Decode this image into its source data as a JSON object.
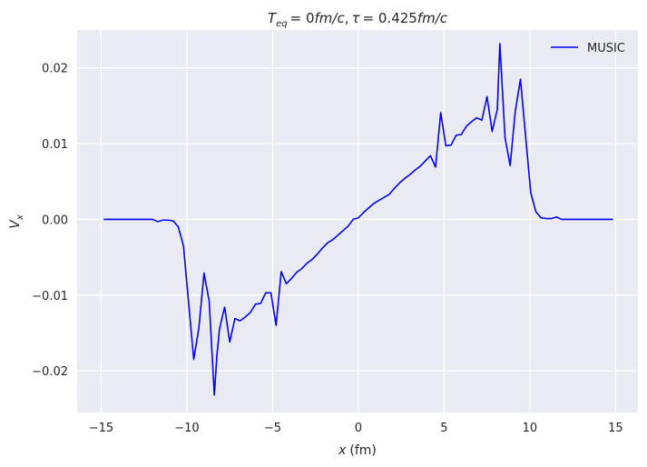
{
  "chart_data": {
    "type": "line",
    "title": "T_eq = 0fm/c, τ = 0.425fm/c",
    "title_parts": {
      "t_symbol": "T",
      "t_subscript": "eq",
      "t_value": "= 0",
      "t_unit": "fm/c",
      "separator": ",",
      "tau_symbol": "τ",
      "tau_value": "= 0.425",
      "tau_unit": "fm/c"
    },
    "xlabel": "x (fm)",
    "xlabel_parts": {
      "var": "x",
      "unit": "(fm)"
    },
    "ylabel": "V_x",
    "ylabel_parts": {
      "var": "V",
      "subscript": "x"
    },
    "xlim": [
      -16.4,
      16.3
    ],
    "ylim": [
      -0.0255,
      0.025
    ],
    "xticks": [
      -15,
      -10,
      -5,
      0,
      5,
      10,
      15
    ],
    "xtick_labels": [
      "−15",
      "−10",
      "−5",
      "0",
      "5",
      "10",
      "15"
    ],
    "yticks": [
      -0.02,
      -0.01,
      0.0,
      0.01,
      0.02
    ],
    "ytick_labels": [
      "−0.02",
      "−0.01",
      "0.00",
      "0.01",
      "0.02"
    ],
    "grid": true,
    "legend_position": "top-right",
    "colors": {
      "background": "#eaeaf2",
      "grid": "#ffffff",
      "line": "#0000ff",
      "text": "#262626"
    },
    "series": [
      {
        "name": "MUSIC",
        "x": [
          -14.85,
          -12.0,
          -11.7,
          -11.4,
          -11.1,
          -10.8,
          -10.5,
          -10.2,
          -9.9,
          -9.6,
          -9.3,
          -9.0,
          -8.7,
          -8.4,
          -8.25,
          -8.1,
          -7.95,
          -7.8,
          -7.5,
          -7.2,
          -6.9,
          -6.6,
          -6.3,
          -6.0,
          -5.7,
          -5.4,
          -5.1,
          -4.8,
          -4.5,
          -4.2,
          -3.9,
          -3.6,
          -3.3,
          -3.0,
          -2.7,
          -2.4,
          -2.1,
          -1.8,
          -1.5,
          -1.2,
          -0.9,
          -0.6,
          -0.3,
          0.0,
          0.3,
          0.6,
          0.9,
          1.2,
          1.5,
          1.8,
          2.1,
          2.4,
          2.7,
          3.0,
          3.3,
          3.6,
          3.9,
          4.2,
          4.5,
          4.8,
          5.1,
          5.4,
          5.7,
          6.0,
          6.3,
          6.6,
          6.9,
          7.2,
          7.5,
          7.8,
          8.1,
          8.25,
          8.55,
          8.85,
          9.15,
          9.45,
          9.75,
          10.05,
          10.35,
          10.65,
          10.95,
          11.25,
          11.55,
          11.85,
          12.15,
          14.85
        ],
        "y": [
          0.0,
          0.0,
          -0.0003,
          -0.0001,
          -0.0001,
          -0.0002,
          -0.001,
          -0.0035,
          -0.011,
          -0.0185,
          -0.0143,
          -0.0071,
          -0.0108,
          -0.0232,
          -0.018,
          -0.0145,
          -0.013,
          -0.0116,
          -0.0162,
          -0.0131,
          -0.0134,
          -0.0129,
          -0.0123,
          -0.0112,
          -0.0111,
          -0.0097,
          -0.0097,
          -0.014,
          -0.0069,
          -0.0085,
          -0.0078,
          -0.007,
          -0.0065,
          -0.0058,
          -0.0053,
          -0.0046,
          -0.0038,
          -0.0031,
          -0.0027,
          -0.0021,
          -0.0015,
          -0.0009,
          0.0,
          0.0002,
          0.0009,
          0.0015,
          0.0021,
          0.0025,
          0.0029,
          0.0033,
          0.0041,
          0.0048,
          0.0054,
          0.0059,
          0.0065,
          0.007,
          0.0077,
          0.0084,
          0.0069,
          0.0141,
          0.0097,
          0.0098,
          0.0111,
          0.0112,
          0.0123,
          0.0129,
          0.0134,
          0.0131,
          0.0162,
          0.0116,
          0.0145,
          0.0232,
          0.0108,
          0.0071,
          0.0143,
          0.0185,
          0.011,
          0.0035,
          0.001,
          0.0002,
          0.0001,
          0.0001,
          0.0003,
          0.0,
          0.0,
          0.0
        ]
      }
    ]
  }
}
